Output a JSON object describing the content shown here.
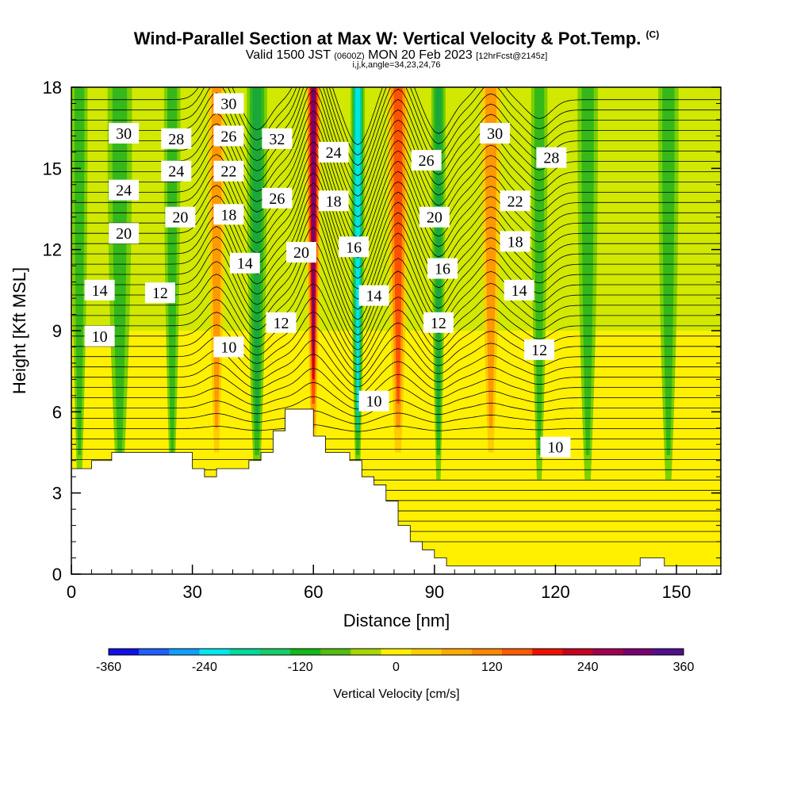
{
  "title": {
    "main": "Wind-Parallel Section at Max W: Vertical Velocity & Pot.Temp.",
    "mark": "(C)",
    "valid_prefix": "Valid 1500 JST",
    "valid_utc": "(0600Z)",
    "valid_date": "MON 20 Feb 2023",
    "forecast": "[12hrFcst@2145z]",
    "params": "i,j,k,angle=34,23,24,76"
  },
  "chart_data": {
    "type": "heatmap",
    "xlabel": "Distance [nm]",
    "ylabel": "Height [Kft MSL]",
    "xlim": [
      0,
      161
    ],
    "ylim": [
      0,
      18
    ],
    "xticks": [
      0,
      30,
      60,
      90,
      120,
      150
    ],
    "yticks": [
      0,
      3,
      6,
      9,
      12,
      15,
      18
    ],
    "colorbar": {
      "label": "Vertical Velocity [cm/s]",
      "ticks": [
        -360,
        -240,
        -120,
        0,
        120,
        240,
        360
      ],
      "colors": [
        "#1010e8",
        "#1f5fff",
        "#0fa0ff",
        "#05e6f0",
        "#00d99e",
        "#17cc6a",
        "#12b818",
        "#55bb10",
        "#a6d800",
        "#ffee00",
        "#ffcc00",
        "#ffaa00",
        "#ff8800",
        "#ff5a00",
        "#ee1000",
        "#c80020",
        "#a00050",
        "#7a0070",
        "#50108c"
      ]
    },
    "terrain_top_kft": [
      [
        0,
        3.9
      ],
      [
        5,
        4.2
      ],
      [
        10,
        4.5
      ],
      [
        27,
        4.5
      ],
      [
        30,
        3.9
      ],
      [
        33,
        3.6
      ],
      [
        36,
        3.9
      ],
      [
        42,
        3.9
      ],
      [
        44,
        4.2
      ],
      [
        47,
        4.5
      ],
      [
        50,
        5.3
      ],
      [
        53,
        6.1
      ],
      [
        57,
        6.1
      ],
      [
        60,
        5.1
      ],
      [
        63,
        4.5
      ],
      [
        66,
        4.5
      ],
      [
        69,
        4.2
      ],
      [
        72,
        3.6
      ],
      [
        75,
        3.3
      ],
      [
        78,
        2.7
      ],
      [
        81,
        1.8
      ],
      [
        84,
        1.2
      ],
      [
        87,
        0.9
      ],
      [
        90,
        0.6
      ],
      [
        93,
        0.3
      ],
      [
        140,
        0.3
      ],
      [
        141,
        0.6
      ],
      [
        146,
        0.6
      ],
      [
        147,
        0.3
      ],
      [
        161,
        0.3
      ]
    ],
    "velocity_columns": [
      {
        "x": 2,
        "w": 4,
        "type": "green"
      },
      {
        "x": 12,
        "w": 6,
        "type": "green"
      },
      {
        "x": 25,
        "w": 4,
        "type": "green"
      },
      {
        "x": 36,
        "w": 4,
        "type": "warm",
        "peak": 120
      },
      {
        "x": 46,
        "w": 5,
        "type": "green",
        "peak": -150
      },
      {
        "x": 60,
        "w": 3.5,
        "type": "warm",
        "peak": 360
      },
      {
        "x": 71,
        "w": 3.5,
        "type": "cold",
        "peak": -300
      },
      {
        "x": 81,
        "w": 5,
        "type": "warm",
        "peak": 220
      },
      {
        "x": 91,
        "w": 3.5,
        "type": "green",
        "peak": -180
      },
      {
        "x": 104,
        "w": 4.5,
        "type": "warm",
        "peak": 120
      },
      {
        "x": 116,
        "w": 4,
        "type": "green",
        "peak": -90
      },
      {
        "x": 128,
        "w": 5,
        "type": "green"
      },
      {
        "x": 148,
        "w": 5,
        "type": "green"
      }
    ],
    "theta_contour_labels": [
      {
        "v": "30",
        "x": 39,
        "y": 17.4
      },
      {
        "v": "30",
        "x": 13,
        "y": 16.3
      },
      {
        "v": "28",
        "x": 26,
        "y": 16.1
      },
      {
        "v": "26",
        "x": 39,
        "y": 16.2
      },
      {
        "v": "32",
        "x": 51,
        "y": 16.1
      },
      {
        "v": "24",
        "x": 65,
        "y": 15.6
      },
      {
        "v": "26",
        "x": 88,
        "y": 15.3
      },
      {
        "v": "30",
        "x": 105,
        "y": 16.3
      },
      {
        "v": "28",
        "x": 119,
        "y": 15.4
      },
      {
        "v": "24",
        "x": 26,
        "y": 14.9
      },
      {
        "v": "22",
        "x": 39,
        "y": 14.9
      },
      {
        "v": "24",
        "x": 13,
        "y": 14.2
      },
      {
        "v": "26",
        "x": 51,
        "y": 13.9
      },
      {
        "v": "18",
        "x": 65,
        "y": 13.8
      },
      {
        "v": "22",
        "x": 110,
        "y": 13.8
      },
      {
        "v": "20",
        "x": 27,
        "y": 13.2
      },
      {
        "v": "18",
        "x": 39,
        "y": 13.3
      },
      {
        "v": "20",
        "x": 90,
        "y": 13.2
      },
      {
        "v": "20",
        "x": 13,
        "y": 12.6
      },
      {
        "v": "18",
        "x": 110,
        "y": 12.3
      },
      {
        "v": "16",
        "x": 70,
        "y": 12.1
      },
      {
        "v": "20",
        "x": 57,
        "y": 11.9
      },
      {
        "v": "14",
        "x": 43,
        "y": 11.5
      },
      {
        "v": "16",
        "x": 92,
        "y": 11.3
      },
      {
        "v": "14",
        "x": 7,
        "y": 10.5
      },
      {
        "v": "12",
        "x": 22,
        "y": 10.4
      },
      {
        "v": "14",
        "x": 75,
        "y": 10.3
      },
      {
        "v": "14",
        "x": 111,
        "y": 10.5
      },
      {
        "v": "10",
        "x": 7,
        "y": 8.8
      },
      {
        "v": "12",
        "x": 52,
        "y": 9.3
      },
      {
        "v": "12",
        "x": 91,
        "y": 9.3
      },
      {
        "v": "12",
        "x": 116,
        "y": 8.3
      },
      {
        "v": "10",
        "x": 39,
        "y": 8.4
      },
      {
        "v": "10",
        "x": 75,
        "y": 6.4
      },
      {
        "v": "10",
        "x": 120,
        "y": 4.7
      }
    ]
  }
}
